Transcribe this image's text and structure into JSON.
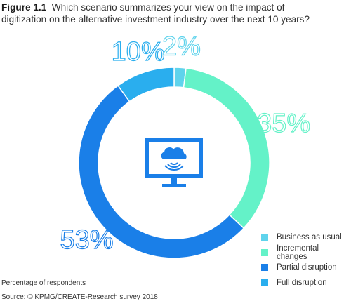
{
  "figure": {
    "label": "Figure 1.1",
    "title": "Which scenario summarizes your view on the impact of digitization on the alternative investment industry over the next 10 years?"
  },
  "chart_data": {
    "type": "pie",
    "variant": "donut",
    "categories": [
      "Business as usual",
      "Incremental changes",
      "Partial disruption",
      "Full disruption"
    ],
    "values": [
      2,
      35,
      53,
      10
    ],
    "value_labels": [
      "2%",
      "35%",
      "53%",
      "10%"
    ],
    "colors": [
      "#5fd3ec",
      "#64f2c8",
      "#1a7fe8",
      "#2aaeee"
    ],
    "legend_position": "bottom-right",
    "center_icon": "cloud-monitor-icon"
  },
  "footnote": "Percentage of respondents",
  "source": "Source: © KPMG/CREATE-Research survey 2018"
}
